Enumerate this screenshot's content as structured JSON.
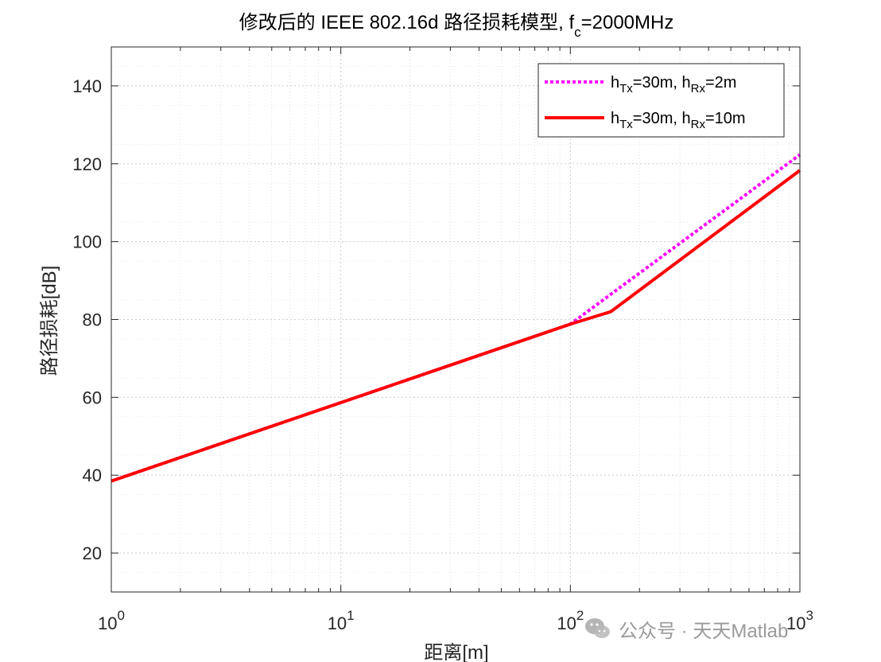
{
  "chart_data": {
    "type": "line",
    "title": {
      "main": "修改后的 IEEE 802.16d 路径损耗模型, f",
      "sub": "c",
      "tail": "=2000MHz"
    },
    "xlabel": "距离[m]",
    "ylabel": "路径损耗[dB]",
    "xscale": "log",
    "xlim": [
      1,
      1000
    ],
    "ylim": [
      10,
      150
    ],
    "xticks": [
      {
        "base": "10",
        "exp": "0",
        "value": 1
      },
      {
        "base": "10",
        "exp": "1",
        "value": 10
      },
      {
        "base": "10",
        "exp": "2",
        "value": 100
      },
      {
        "base": "10",
        "exp": "3",
        "value": 1000
      }
    ],
    "yticks": [
      "20",
      "40",
      "60",
      "80",
      "100",
      "120",
      "140"
    ],
    "grid": true,
    "minor_grid": true,
    "legend_position": "top-right",
    "series": [
      {
        "legend": {
          "a": "h",
          "a_sub": "Tx",
          "b": "=30m, h",
          "b_sub": "Rx",
          "c": "=2m"
        },
        "color": "#ff00ff",
        "style": "dotted",
        "x": [
          1,
          100,
          1000
        ],
        "y": [
          38.5,
          78.8,
          122.3
        ]
      },
      {
        "legend": {
          "a": "h",
          "a_sub": "Tx",
          "b": "=30m, h",
          "b_sub": "Rx",
          "c": "=10m"
        },
        "color": "#ff0000",
        "style": "solid",
        "x": [
          1,
          100,
          150,
          1000
        ],
        "y": [
          38.5,
          78.8,
          82,
          118.3
        ]
      }
    ]
  },
  "watermark": {
    "text": "公众号 · 天天Matlab",
    "icon": "wechat-icon"
  }
}
